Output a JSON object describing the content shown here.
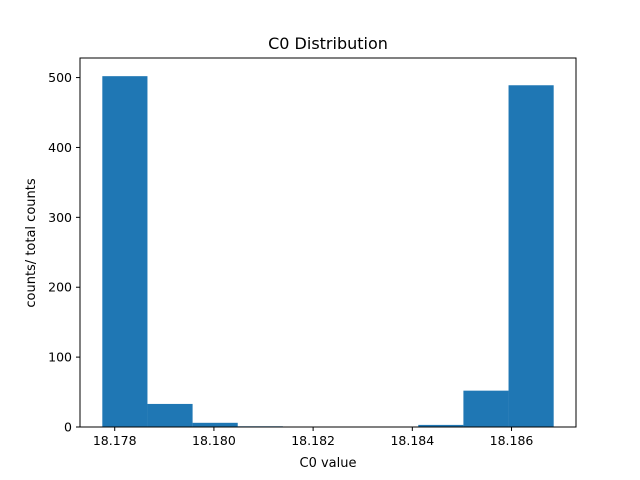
{
  "chart_data": {
    "type": "bar",
    "title": "C0 Distribution",
    "xlabel": "C0 value",
    "ylabel": "counts/ total counts",
    "bins": [
      {
        "x0": 18.17775,
        "x1": 18.17866,
        "value": 502
      },
      {
        "x0": 18.17866,
        "x1": 18.17957,
        "value": 33
      },
      {
        "x0": 18.17957,
        "x1": 18.18048,
        "value": 6
      },
      {
        "x0": 18.18048,
        "x1": 18.18139,
        "value": 1
      },
      {
        "x0": 18.18139,
        "x1": 18.1823,
        "value": 0
      },
      {
        "x0": 18.1823,
        "x1": 18.18321,
        "value": 0
      },
      {
        "x0": 18.18321,
        "x1": 18.18412,
        "value": 0
      },
      {
        "x0": 18.18412,
        "x1": 18.18503,
        "value": 3
      },
      {
        "x0": 18.18503,
        "x1": 18.18594,
        "value": 52
      },
      {
        "x0": 18.18594,
        "x1": 18.18685,
        "value": 489
      }
    ],
    "xlim": [
      18.1773,
      18.1873
    ],
    "ylim": [
      0,
      528
    ],
    "xticks": [
      18.178,
      18.18,
      18.182,
      18.184,
      18.186
    ],
    "xtick_labels": [
      "18.178",
      "18.180",
      "18.182",
      "18.184",
      "18.186"
    ],
    "yticks": [
      0,
      100,
      200,
      300,
      400,
      500
    ],
    "ytick_labels": [
      "0",
      "100",
      "200",
      "300",
      "400",
      "500"
    ],
    "bar_color": "#1f77b4",
    "grid": false,
    "legend": false
  }
}
